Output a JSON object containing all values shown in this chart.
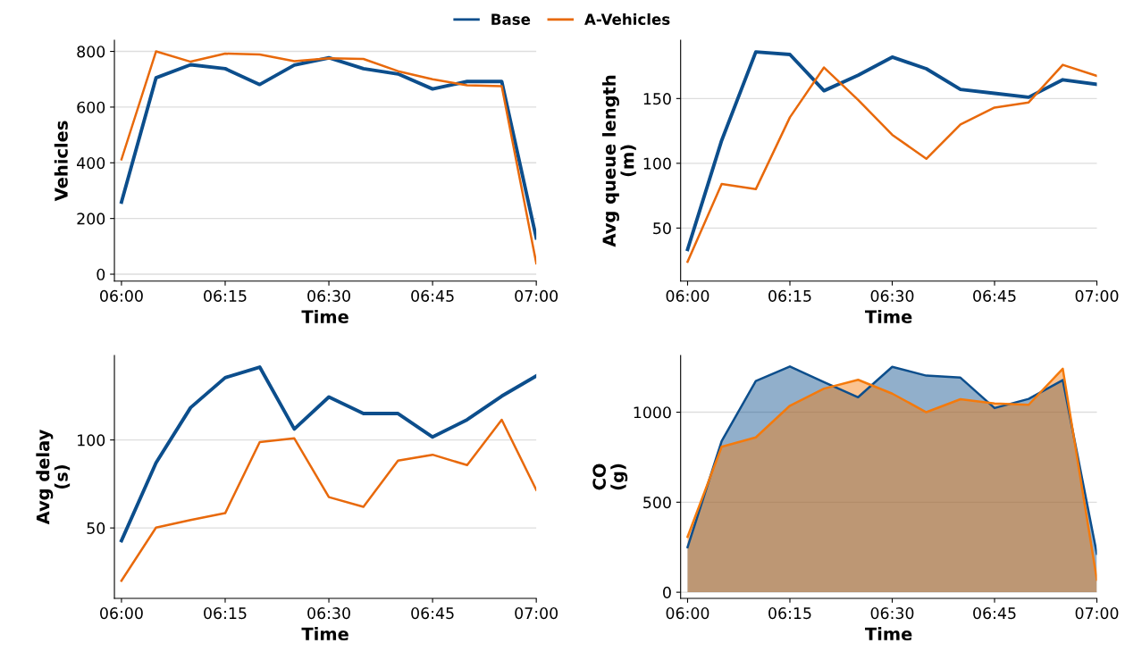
{
  "chart_data": [
    {
      "type": "line",
      "xlabel": "Time",
      "ylabel": "Vehicles",
      "legend": "top",
      "grid": "y",
      "x": [
        6,
        6.0833,
        6.1667,
        6.25,
        6.3333,
        6.4167,
        6.5,
        6.5833,
        6.6667,
        6.75,
        6.8333,
        6.9167,
        7
      ],
      "xlim": [
        5.983,
        7
      ],
      "xticks": [
        {
          "value": 6,
          "label": "06:00"
        },
        {
          "value": 6.25,
          "label": "06:15"
        },
        {
          "value": 6.5,
          "label": "06:30"
        },
        {
          "value": 6.75,
          "label": "06:45"
        },
        {
          "value": 7,
          "label": "07:00"
        }
      ],
      "ylim": [
        -25,
        840
      ],
      "yticks": [
        0,
        200,
        400,
        600,
        800
      ],
      "series": [
        {
          "name": "Base",
          "color": "#0c4e8c",
          "values": [
            259,
            705,
            752,
            738,
            681,
            751,
            777,
            738,
            719,
            665,
            692,
            692,
            130
          ]
        },
        {
          "name": "A-Vehicles",
          "color": "#e8690b",
          "values": [
            412,
            800,
            763,
            792,
            789,
            765,
            775,
            773,
            729,
            700,
            678,
            675,
            39
          ]
        }
      ]
    },
    {
      "type": "line",
      "xlabel": "Time",
      "ylabel": "Avg queue length\n(m)",
      "grid": "y",
      "x": [
        6,
        6.0833,
        6.1667,
        6.25,
        6.3333,
        6.4167,
        6.5,
        6.5833,
        6.6667,
        6.75,
        6.8333,
        6.9167,
        7
      ],
      "xlim": [
        5.983,
        7
      ],
      "xticks": [
        {
          "value": 6,
          "label": "06:00"
        },
        {
          "value": 6.25,
          "label": "06:15"
        },
        {
          "value": 6.5,
          "label": "06:30"
        },
        {
          "value": 6.75,
          "label": "06:45"
        },
        {
          "value": 7,
          "label": "07:00"
        }
      ],
      "ylim": [
        9,
        195
      ],
      "yticks": [
        50,
        100,
        150
      ],
      "series": [
        {
          "color": "#0c4e8c",
          "values": [
            33.5,
            117.7,
            186,
            184,
            156,
            168,
            182,
            173,
            157,
            154,
            151,
            164.5,
            161
          ]
        },
        {
          "color": "#e8690b",
          "values": [
            24,
            84,
            80,
            135.5,
            174,
            149,
            122,
            103.5,
            130,
            143,
            147,
            176,
            167.5
          ]
        }
      ]
    },
    {
      "type": "line",
      "xlabel": "Time",
      "ylabel": "Avg delay\n(s)",
      "grid": "y",
      "x": [
        6,
        6.0833,
        6.1667,
        6.25,
        6.3333,
        6.4167,
        6.5,
        6.5833,
        6.6667,
        6.75,
        6.8333,
        6.9167,
        7
      ],
      "xlim": [
        5.983,
        7
      ],
      "xticks": [
        {
          "value": 6,
          "label": "06:00"
        },
        {
          "value": 6.25,
          "label": "06:15"
        },
        {
          "value": 6.5,
          "label": "06:30"
        },
        {
          "value": 6.75,
          "label": "06:45"
        },
        {
          "value": 7,
          "label": "07:00"
        }
      ],
      "ylim": [
        10,
        148
      ],
      "yticks": [
        50,
        100
      ],
      "series": [
        {
          "color": "#0c4e8c",
          "values": [
            42.8,
            87,
            118.4,
            135.4,
            141.4,
            106.2,
            124.4,
            115,
            115,
            101.7,
            111.5,
            124.9,
            136.4
          ]
        },
        {
          "color": "#e8690b",
          "values": [
            20,
            50.2,
            54.5,
            58.4,
            98.8,
            100.9,
            67.5,
            62,
            88.3,
            91.6,
            85.7,
            111.5,
            71.6
          ]
        }
      ]
    },
    {
      "type": "area",
      "xlabel": "Time",
      "ylabel": "CO\n(g)",
      "grid": "y",
      "x": [
        6,
        6.0833,
        6.1667,
        6.25,
        6.3333,
        6.4167,
        6.5,
        6.5833,
        6.6667,
        6.75,
        6.8333,
        6.9167,
        7
      ],
      "xlim": [
        5.983,
        7
      ],
      "xticks": [
        {
          "value": 6,
          "label": "06:00"
        },
        {
          "value": 6.25,
          "label": "06:15"
        },
        {
          "value": 6.5,
          "label": "06:30"
        },
        {
          "value": 6.75,
          "label": "06:45"
        },
        {
          "value": 7,
          "label": "07:00"
        }
      ],
      "ylim": [
        -34,
        1315
      ],
      "yticks": [
        0,
        500,
        1000
      ],
      "series": [
        {
          "color": "#0c4e8c",
          "values": [
            250,
            840,
            1173,
            1254,
            1167,
            1083,
            1252,
            1203,
            1192,
            1023,
            1074,
            1178,
            214
          ]
        },
        {
          "color": "#f47a0c",
          "values": [
            308,
            808,
            860,
            1036,
            1131,
            1180,
            1103,
            1000,
            1072,
            1049,
            1041,
            1241,
            70
          ]
        }
      ]
    }
  ]
}
